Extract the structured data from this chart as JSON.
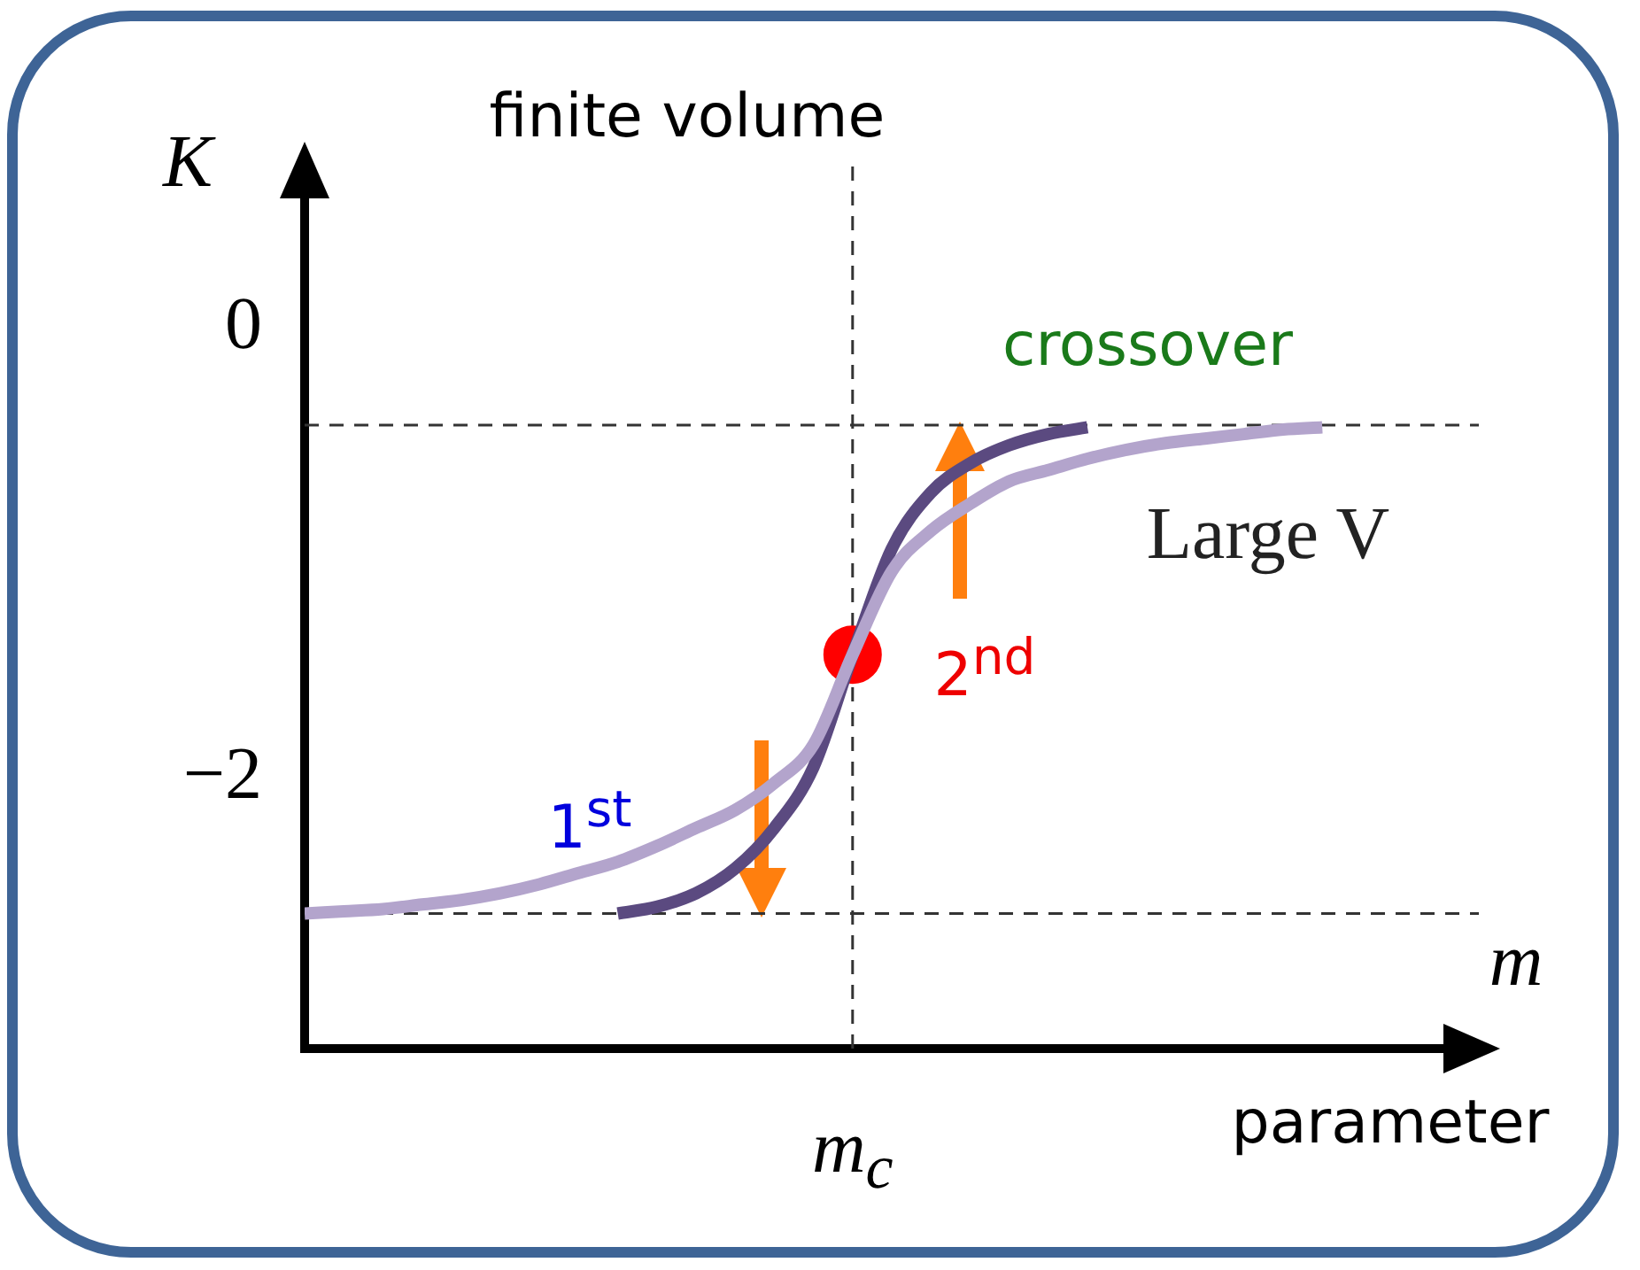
{
  "chart_data": {
    "type": "line",
    "title": "finite volume",
    "xlabel": "m",
    "ylabel": "K",
    "categories": [
      null,
      null,
      null,
      null,
      null,
      null,
      null,
      null,
      null,
      null,
      null,
      null,
      null,
      null,
      "m$_{c}$",
      null,
      null,
      null,
      null,
      null,
      null,
      null,
      null,
      null,
      null,
      null,
      null,
      null,
      null,
      null,
      null
    ],
    "series": [
      {
        "color": "#b3a4cc",
        "values": [
          -2.6,
          -2.59,
          -2.58,
          -2.56,
          -2.54,
          -2.51,
          -2.47,
          -2.42,
          -2.37,
          -2.3,
          -2.22,
          -2.14,
          -2.02,
          -1.85,
          -1.45,
          -1.08,
          -0.9,
          -0.78,
          -0.68,
          -0.63,
          -0.58,
          -0.54,
          -0.51,
          -0.49,
          -0.47,
          -0.45,
          -0.44,
          null,
          null,
          null,
          null
        ]
      },
      {
        "color": "#5b4a80",
        "values": [
          null,
          null,
          null,
          null,
          null,
          null,
          null,
          null,
          -2.6,
          -2.57,
          -2.51,
          -2.4,
          -2.22,
          -1.95,
          -1.45,
          -0.98,
          -0.73,
          -0.6,
          -0.52,
          -0.47,
          -0.44,
          null,
          null,
          null,
          null,
          null,
          null,
          null,
          null,
          null,
          null
        ]
      },
      {
        "type": "scatter",
        "color": "#ff0000",
        "x": [
          "m$_{c}$"
        ],
        "values": [
          -1.45
        ]
      }
    ],
    "ylim": [
      -3.2,
      0.75
    ],
    "yticks": [
      0,
      {
        "value": -2,
        "label": "−2"
      }
    ],
    "grid": false,
    "legend": false,
    "line_style": "solid",
    "ref_lines": [
      {
        "axis": "y",
        "value": -0.43,
        "color": "#333333",
        "line_style": "dashed"
      },
      {
        "axis": "y",
        "value": -2.6,
        "color": "#333333",
        "line_style": "dashed"
      },
      {
        "axis": "x",
        "value": "m$_{c}$",
        "color": "#333333",
        "line_style": "dashed"
      }
    ],
    "annotations": [
      "crossover",
      "Large V",
      "1$^{st}$",
      "2$^{nd}$",
      "parameter"
    ]
  }
}
